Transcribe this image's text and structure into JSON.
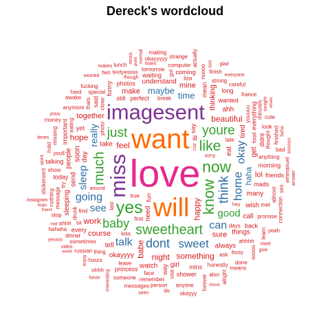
{
  "chart_data": {
    "type": "wordcloud",
    "title": "Dereck's wordcloud",
    "colors": {
      "pink": "#e7298a",
      "orange": "#ff6a00",
      "purple": "#7b3294",
      "green": "#33a02c",
      "blue": "#2c6ca3",
      "red": "#d7191c"
    },
    "words": [
      {
        "text": "love",
        "size": 56,
        "color": "pink"
      },
      {
        "text": "want",
        "size": 40,
        "color": "orange"
      },
      {
        "text": "will",
        "size": 38,
        "color": "orange"
      },
      {
        "text": "imagesent",
        "size": 31,
        "color": "purple"
      },
      {
        "text": "miss",
        "size": 31,
        "color": "purple"
      },
      {
        "text": "yes",
        "size": 25,
        "color": "green"
      },
      {
        "text": "now",
        "size": 23,
        "color": "green"
      },
      {
        "text": "know",
        "size": 22,
        "color": "green"
      },
      {
        "text": "like",
        "size": 21,
        "color": "green"
      },
      {
        "text": "sweetheart",
        "size": 20,
        "color": "green"
      },
      {
        "text": "much",
        "size": 20,
        "color": "green"
      },
      {
        "text": "just",
        "size": 19,
        "color": "green"
      },
      {
        "text": "youre",
        "size": 19,
        "color": "green"
      },
      {
        "text": "think",
        "size": 19,
        "color": "blue"
      },
      {
        "text": "dont",
        "size": 18,
        "color": "blue"
      },
      {
        "text": "baby",
        "size": 18,
        "color": "green"
      },
      {
        "text": "home",
        "size": 17,
        "color": "blue"
      },
      {
        "text": "sweet",
        "size": 17,
        "color": "blue"
      },
      {
        "text": "can",
        "size": 16,
        "color": "blue"
      },
      {
        "text": "okay",
        "size": 16,
        "color": "blue"
      },
      {
        "text": "going",
        "size": 16,
        "color": "blue"
      },
      {
        "text": "talk",
        "size": 16,
        "color": "blue"
      },
      {
        "text": "sleep",
        "size": 15,
        "color": "blue"
      },
      {
        "text": "good",
        "size": 15,
        "color": "green"
      },
      {
        "text": "see",
        "size": 15,
        "color": "blue"
      },
      {
        "text": "really",
        "size": 14,
        "color": "blue"
      },
      {
        "text": "maybe",
        "size": 13,
        "color": "blue"
      },
      {
        "text": "time",
        "size": 13,
        "color": "blue"
      },
      {
        "text": "haha",
        "size": 12,
        "color": "blue"
      },
      {
        "text": "feel",
        "size": 12,
        "color": "red"
      },
      {
        "text": "beautiful",
        "size": 12,
        "color": "red"
      },
      {
        "text": "happy",
        "size": 12,
        "color": "red"
      },
      {
        "text": "night",
        "size": 12,
        "color": "red"
      },
      {
        "text": "something",
        "size": 12,
        "color": "red"
      },
      {
        "text": "babe",
        "size": 12,
        "color": "red"
      },
      {
        "text": "work",
        "size": 12,
        "color": "red"
      },
      {
        "text": "hope",
        "size": 12,
        "color": "red"
      },
      {
        "text": "thinking",
        "size": 11,
        "color": "red"
      },
      {
        "text": "together",
        "size": 11,
        "color": "red"
      },
      {
        "text": "course",
        "size": 11,
        "color": "red"
      },
      {
        "text": "soon",
        "size": 11,
        "color": "red"
      },
      {
        "text": "sure",
        "size": 11,
        "color": "red"
      },
      {
        "text": "make",
        "size": 11,
        "color": "red"
      },
      {
        "text": "get",
        "size": 11,
        "color": "red"
      },
      {
        "text": "mine",
        "size": 11,
        "color": "red"
      },
      {
        "text": "lol",
        "size": 11,
        "color": "red"
      },
      {
        "text": "need",
        "size": 10,
        "color": "red"
      },
      {
        "text": "ill",
        "size": 10,
        "color": "red"
      },
      {
        "text": "ahh",
        "size": 10,
        "color": "red"
      },
      {
        "text": "tired",
        "size": 10,
        "color": "red"
      },
      {
        "text": "call",
        "size": 10,
        "color": "red"
      },
      {
        "text": "tell",
        "size": 10,
        "color": "red"
      },
      {
        "text": "eat",
        "size": 10,
        "color": "red"
      },
      {
        "text": "wish",
        "size": 10,
        "color": "red"
      },
      {
        "text": "things",
        "size": 10,
        "color": "red"
      },
      {
        "text": "send",
        "size": 10,
        "color": "red"
      },
      {
        "text": "many",
        "size": 10,
        "color": "red"
      },
      {
        "text": "always",
        "size": 10,
        "color": "red"
      },
      {
        "text": "people",
        "size": 10,
        "color": "red"
      },
      {
        "text": "understand",
        "size": 10,
        "color": "red"
      },
      {
        "text": "girl",
        "size": 10,
        "color": "red"
      },
      {
        "text": "sleeping",
        "size": 10,
        "color": "red"
      },
      {
        "text": "watch",
        "size": 10,
        "color": "red"
      },
      {
        "text": "okayyyy",
        "size": 10,
        "color": "red"
      },
      {
        "text": "day",
        "size": 10,
        "color": "red"
      },
      {
        "text": "take",
        "size": 10,
        "color": "red"
      },
      {
        "text": "wanted",
        "size": 9,
        "color": "red"
      },
      {
        "text": "said",
        "size": 9,
        "color": "red"
      },
      {
        "text": "every",
        "size": 9,
        "color": "red"
      },
      {
        "text": "still",
        "size": 9,
        "color": "red"
      },
      {
        "text": "didnt",
        "size": 9,
        "color": "red"
      },
      {
        "text": "today",
        "size": 9,
        "color": "red"
      },
      {
        "text": "perfect",
        "size": 9,
        "color": "red"
      },
      {
        "text": "fun",
        "size": 9,
        "color": "red"
      },
      {
        "text": "yet",
        "size": 9,
        "color": "red"
      },
      {
        "text": "photos",
        "size": 9,
        "color": "red"
      },
      {
        "text": "everything",
        "size": 9,
        "color": "red"
      },
      {
        "text": "waiting",
        "size": 9,
        "color": "red"
      },
      {
        "text": "coming",
        "size": 9,
        "color": "red"
      },
      {
        "text": "funny",
        "size": 9,
        "color": "red"
      },
      {
        "text": "morning",
        "size": 9,
        "color": "red"
      },
      {
        "text": "mins",
        "size": 9,
        "color": "red"
      },
      {
        "text": "way",
        "size": 9,
        "color": "red"
      },
      {
        "text": "mads",
        "size": 9,
        "color": "red"
      },
      {
        "text": "long",
        "size": 9,
        "color": "red"
      },
      {
        "text": "important",
        "size": 9,
        "color": "red"
      },
      {
        "text": "friends",
        "size": 9,
        "color": "red"
      },
      {
        "text": "shower",
        "size": 9,
        "color": "red"
      },
      {
        "text": "mean",
        "size": 9,
        "color": "red"
      },
      {
        "text": "back",
        "size": 9,
        "color": "red"
      },
      {
        "text": "princess",
        "size": 9,
        "color": "red"
      },
      {
        "text": "say",
        "size": 9,
        "color": "red"
      },
      {
        "text": "talking",
        "size": 9,
        "color": "red"
      },
      {
        "text": "tomorrow",
        "size": 8,
        "color": "red"
      },
      {
        "text": "thought",
        "size": 8,
        "color": "red"
      },
      {
        "text": "sometimes",
        "size": 8,
        "color": "red"
      },
      {
        "text": "remember",
        "size": 8,
        "color": "red"
      },
      {
        "text": "last",
        "size": 8,
        "color": "red"
      },
      {
        "text": "anything",
        "size": 8,
        "color": "red"
      },
      {
        "text": "thing",
        "size": 8,
        "color": "red"
      },
      {
        "text": "message",
        "size": 8,
        "color": "red"
      },
      {
        "text": "promise",
        "size": 8,
        "color": "red"
      },
      {
        "text": "honestly",
        "size": 8,
        "color": "red"
      },
      {
        "text": "missing",
        "size": 8,
        "color": "red"
      },
      {
        "text": "anymore",
        "size": 8,
        "color": "red"
      },
      {
        "text": "break",
        "size": 8,
        "color": "red"
      },
      {
        "text": "close",
        "size": 8,
        "color": "red"
      },
      {
        "text": "busy",
        "size": 8,
        "color": "red"
      },
      {
        "text": "first",
        "size": 8,
        "color": "red"
      },
      {
        "text": "youuuu",
        "size": 8,
        "color": "red"
      },
      {
        "text": "days",
        "size": 8,
        "color": "red"
      },
      {
        "text": "strong",
        "size": 8,
        "color": "red"
      },
      {
        "text": "drunk",
        "size": 8,
        "color": "red"
      },
      {
        "text": "leave",
        "size": 8,
        "color": "red"
      },
      {
        "text": "special",
        "size": 8,
        "color": "red"
      },
      {
        "text": "eating",
        "size": 8,
        "color": "red"
      },
      {
        "text": "kiss",
        "size": 8,
        "color": "red"
      },
      {
        "text": "liza",
        "size": 8,
        "color": "red"
      },
      {
        "text": "photo",
        "size": 8,
        "color": "red"
      },
      {
        "text": "met",
        "size": 8,
        "color": "red"
      },
      {
        "text": "ask",
        "size": 8,
        "color": "red"
      },
      {
        "text": "got",
        "size": 8,
        "color": "red"
      },
      {
        "text": "youll",
        "size": 8,
        "color": "red"
      },
      {
        "text": "textyessss",
        "size": 8,
        "color": "red"
      },
      {
        "text": "nothing",
        "size": 8,
        "color": "red"
      },
      {
        "text": "dinner",
        "size": 8,
        "color": "red"
      },
      {
        "text": "ahhhh",
        "size": 8,
        "color": "red"
      },
      {
        "text": "finished",
        "size": 8,
        "color": "red"
      },
      {
        "text": "computer",
        "size": 8,
        "color": "red"
      },
      {
        "text": "look",
        "size": 8,
        "color": "red"
      },
      {
        "text": "almost",
        "size": 8,
        "color": "red"
      },
      {
        "text": "someone",
        "size": 8,
        "color": "red"
      },
      {
        "text": "hours",
        "size": 8,
        "color": "red"
      },
      {
        "text": "minutes",
        "size": 8,
        "color": "red"
      },
      {
        "text": "sooooo",
        "size": 7,
        "color": "red"
      },
      {
        "text": "show",
        "size": 8,
        "color": "red"
      },
      {
        "text": "face",
        "size": 8,
        "color": "red"
      },
      {
        "text": "emmanuel",
        "size": 8,
        "color": "red"
      },
      {
        "text": "russian",
        "size": 8,
        "color": "red"
      },
      {
        "text": "true",
        "size": 8,
        "color": "red"
      },
      {
        "text": "noooo",
        "size": 8,
        "color": "red"
      },
      {
        "text": "careful",
        "size": 8,
        "color": "red"
      },
      {
        "text": "also",
        "size": 8,
        "color": "red"
      },
      {
        "text": "soooo",
        "size": 8,
        "color": "red"
      },
      {
        "text": "anyone",
        "size": 8,
        "color": "red"
      },
      {
        "text": "find",
        "size": 8,
        "color": "red"
      },
      {
        "text": "try",
        "size": 8,
        "color": "red"
      },
      {
        "text": "ahhh",
        "size": 8,
        "color": "red"
      },
      {
        "text": "fucking",
        "size": 8,
        "color": "red"
      },
      {
        "text": "usa",
        "size": 8,
        "color": "red"
      },
      {
        "text": "okayyyyy",
        "size": 8,
        "color": "red"
      },
      {
        "text": "messages",
        "size": 8,
        "color": "red"
      },
      {
        "text": "food",
        "size": 8,
        "color": "red"
      },
      {
        "text": "late",
        "size": 8,
        "color": "red"
      },
      {
        "text": "finish",
        "size": 8,
        "color": "red"
      },
      {
        "text": "learn",
        "size": 8,
        "color": "red"
      },
      {
        "text": "cute",
        "size": 8,
        "color": "red"
      },
      {
        "text": "bad",
        "size": 8,
        "color": "red"
      },
      {
        "text": "thats",
        "size": 8,
        "color": "red"
      },
      {
        "text": "ohhh",
        "size": 8,
        "color": "red"
      },
      {
        "text": "awake",
        "size": 8,
        "color": "red"
      },
      {
        "text": "everyone",
        "size": 7,
        "color": "red"
      },
      {
        "text": "connection",
        "size": 8,
        "color": "red"
      },
      {
        "text": "france",
        "size": 8,
        "color": "red"
      },
      {
        "text": "person",
        "size": 8,
        "color": "red"
      },
      {
        "text": "forever",
        "size": 8,
        "color": "red"
      },
      {
        "text": "lunch",
        "size": 8,
        "color": "red"
      },
      {
        "text": "making",
        "size": 8,
        "color": "red"
      },
      {
        "text": "actually",
        "size": 8,
        "color": "red"
      },
      {
        "text": "two",
        "size": 8,
        "color": "red"
      },
      {
        "text": "stop",
        "size": 8,
        "color": "red"
      },
      {
        "text": "stickersent",
        "size": 8,
        "color": "red"
      },
      {
        "text": "means",
        "size": 8,
        "color": "red"
      },
      {
        "text": "done",
        "size": 8,
        "color": "red"
      },
      {
        "text": "sex",
        "size": 8,
        "color": "red"
      },
      {
        "text": "money",
        "size": 8,
        "color": "red"
      },
      {
        "text": "hard",
        "size": 8,
        "color": "red"
      },
      {
        "text": "alright",
        "size": 8,
        "color": "red"
      },
      {
        "text": "okayyy",
        "size": 8,
        "color": "red"
      },
      {
        "text": "makes",
        "size": 7,
        "color": "red"
      },
      {
        "text": "normal",
        "size": 7,
        "color": "red"
      },
      {
        "text": "strange",
        "size": 8,
        "color": "red"
      },
      {
        "text": "meet",
        "size": 7,
        "color": "red"
      },
      {
        "text": "though",
        "size": 7,
        "color": "red"
      },
      {
        "text": "enjoy",
        "size": 7,
        "color": "red"
      },
      {
        "text": "hold",
        "size": 8,
        "color": "red"
      },
      {
        "text": "sorry",
        "size": 7,
        "color": "red"
      },
      {
        "text": "instagram",
        "size": 7,
        "color": "red"
      },
      {
        "text": "tonight",
        "size": 7,
        "color": "red"
      },
      {
        "text": "video",
        "size": 7,
        "color": "red"
      },
      {
        "text": "give",
        "size": 7,
        "color": "red"
      },
      {
        "text": "interesting",
        "size": 7,
        "color": "red"
      },
      {
        "text": "worried",
        "size": 7,
        "color": "red"
      },
      {
        "text": "hey",
        "size": 7,
        "color": "red"
      },
      {
        "text": "cuz",
        "size": 7,
        "color": "red"
      },
      {
        "text": "yessss",
        "size": 7,
        "color": "red"
      },
      {
        "text": "listen",
        "size": 7,
        "color": "red"
      },
      {
        "text": "answer",
        "size": 7,
        "color": "red"
      },
      {
        "text": "seen",
        "size": 7,
        "color": "red"
      },
      {
        "text": "times",
        "size": 7,
        "color": "red"
      },
      {
        "text": "check",
        "size": 6,
        "color": "red"
      },
      {
        "text": "whats",
        "size": 6,
        "color": "red"
      },
      {
        "text": "music",
        "size": 7,
        "color": "red"
      },
      {
        "text": "bit",
        "size": 7,
        "color": "red"
      },
      {
        "text": "friend",
        "size": 6,
        "color": "red"
      },
      {
        "text": "life",
        "size": 7,
        "color": "red"
      },
      {
        "text": "world",
        "size": 6,
        "color": "red"
      },
      {
        "text": "point",
        "size": 6,
        "color": "red"
      },
      {
        "text": "told",
        "size": 6,
        "color": "red"
      },
      {
        "text": "wont",
        "size": 7,
        "color": "red"
      },
      {
        "text": "man",
        "size": 7,
        "color": "red"
      },
      {
        "text": "hmm",
        "size": 7,
        "color": "red"
      },
      {
        "text": "hehe",
        "size": 7,
        "color": "red"
      },
      {
        "text": "glad",
        "size": 7,
        "color": "red"
      },
      {
        "text": "around",
        "size": 7,
        "color": "red"
      },
      {
        "text": "soo",
        "size": 7,
        "color": "red"
      },
      {
        "text": "youu",
        "size": 7,
        "color": "red"
      },
      {
        "text": "hahaha",
        "size": 8,
        "color": "red"
      },
      {
        "text": "yeah",
        "size": 8,
        "color": "red"
      }
    ]
  }
}
